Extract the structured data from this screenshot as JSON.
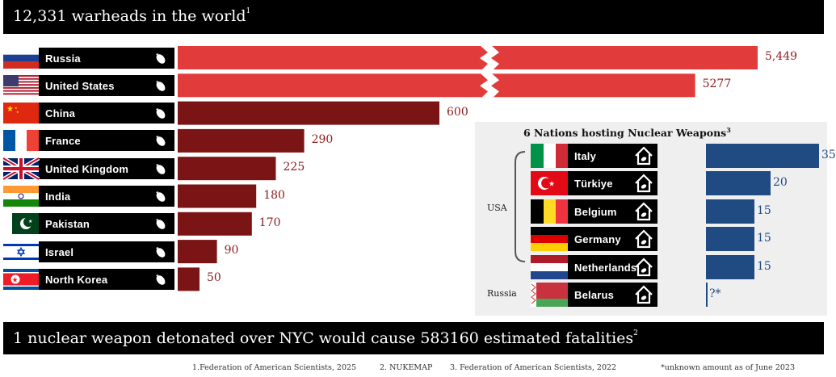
{
  "header": {
    "title": "12,331 warheads in the world",
    "note": "1"
  },
  "footer_banner": {
    "text": "1 nuclear weapon detonated over NYC would cause 583160 estimated fatalities",
    "note": "2"
  },
  "sources": [
    "1.Federation of American Scientists, 2025",
    "2. NUKEMAP",
    "3. Federation of American Scientists, 2022",
    "*unknown amount as of June 2023"
  ],
  "colors": {
    "red_bar": "#e23b3b",
    "dark_bar": "#7b1515",
    "blue_bar": "#1f4a82",
    "value_red": "#8b1c1c"
  },
  "chart_data": [
    {
      "type": "bar",
      "orientation": "horizontal",
      "categories": [
        "Russia",
        "United States",
        "China",
        "France",
        "United Kingdom",
        "India",
        "Pakistan",
        "Israel",
        "North Korea"
      ],
      "values": [
        5449,
        5277,
        600,
        290,
        225,
        180,
        170,
        90,
        50
      ],
      "value_labels": [
        "5,449",
        "5277",
        "600",
        "290",
        "225",
        "180",
        "170",
        "90",
        "50"
      ],
      "axis_break": true
    },
    {
      "type": "bar",
      "orientation": "horizontal",
      "title": "6 Nations hosting Nuclear Weapons",
      "title_note": "3",
      "categories": [
        "Italy",
        "Türkiye",
        "Belgium",
        "Germany",
        "Netherlands",
        "Belarus"
      ],
      "values": [
        35,
        20,
        15,
        15,
        15,
        null
      ],
      "value_labels": [
        "35",
        "20",
        "15",
        "15",
        "15",
        "?*"
      ],
      "groups": [
        {
          "label": "USA",
          "members": [
            "Italy",
            "Türkiye",
            "Belgium",
            "Germany",
            "Netherlands"
          ]
        },
        {
          "label": "Russia",
          "members": [
            "Belarus"
          ]
        }
      ]
    }
  ]
}
